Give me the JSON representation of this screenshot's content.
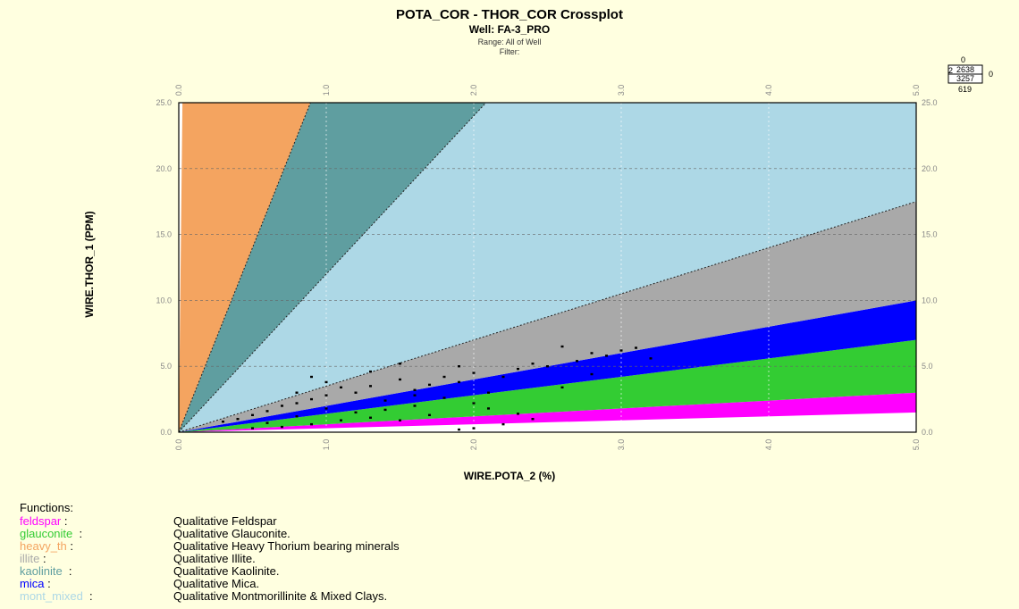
{
  "title": "POTA_COR - THOR_COR Crossplot",
  "well": "Well: FA-3_PRO",
  "range": "Range: All of Well",
  "filter": "Filter:",
  "counts": {
    "top": "0",
    "left": "2",
    "right": "0",
    "cell_top": "2638",
    "cell_bottom": "3257",
    "bottom": "619"
  },
  "colors": {
    "background": "#ffffe0",
    "feldspar": "#ff00ff",
    "glauconite": "#33cc33",
    "heavy_th": "#f4a460",
    "illite": "#a9a9a9",
    "kaolinite": "#5f9ea0",
    "mica": "#0000ff",
    "mont_mixed": "#add8e6"
  },
  "chart_data": {
    "type": "scatter",
    "title": "POTA_COR - THOR_COR Crossplot",
    "xlabel": "WIRE.POTA_2 (%)",
    "ylabel": "WIRE.THOR_1 (PPM)",
    "xlim": [
      0,
      5
    ],
    "ylim": [
      0,
      25
    ],
    "x_ticks": [
      "0.0",
      "1.0",
      "2.0",
      "3.0",
      "4.0",
      "5.0"
    ],
    "y_ticks": [
      "0.0",
      "5.0",
      "10.0",
      "15.0",
      "20.0",
      "25.0"
    ],
    "grid": true,
    "zone_boundaries_thor_per_pota": [
      {
        "zone": "feldspar",
        "lower": 0.3,
        "upper": 0.6
      },
      {
        "zone": "glauconite",
        "lower": 0.6,
        "upper": 1.4
      },
      {
        "zone": "mica",
        "lower": 1.4,
        "upper": 2.0
      },
      {
        "zone": "illite",
        "lower": 2.0,
        "upper": 3.5
      },
      {
        "zone": "mont_mixed",
        "lower": 3.5,
        "upper": 12.0
      },
      {
        "zone": "kaolinite",
        "lower": 12.0,
        "upper": 28.0
      },
      {
        "zone": "heavy_th",
        "lower": 28.0,
        "upper": 1000
      }
    ],
    "points": [
      [
        2.6,
        6.5
      ],
      [
        2.8,
        6.0
      ],
      [
        3.0,
        6.2
      ],
      [
        3.1,
        6.4
      ],
      [
        2.9,
        5.8
      ],
      [
        2.5,
        5.0
      ],
      [
        2.7,
        5.4
      ],
      [
        2.3,
        4.8
      ],
      [
        2.4,
        5.2
      ],
      [
        2.2,
        4.2
      ],
      [
        2.0,
        4.5
      ],
      [
        1.9,
        3.8
      ],
      [
        1.8,
        4.2
      ],
      [
        1.7,
        3.6
      ],
      [
        1.6,
        3.2
      ],
      [
        1.5,
        4.0
      ],
      [
        1.3,
        3.5
      ],
      [
        1.2,
        3.0
      ],
      [
        1.1,
        3.4
      ],
      [
        1.0,
        2.8
      ],
      [
        0.9,
        2.5
      ],
      [
        0.8,
        2.2
      ],
      [
        0.7,
        2.0
      ],
      [
        0.6,
        1.6
      ],
      [
        0.5,
        1.3
      ],
      [
        0.4,
        1.0
      ],
      [
        0.3,
        0.8
      ],
      [
        1.4,
        2.4
      ],
      [
        1.6,
        2.0
      ],
      [
        1.8,
        2.6
      ],
      [
        2.0,
        2.2
      ],
      [
        2.1,
        1.8
      ],
      [
        2.3,
        1.4
      ],
      [
        2.4,
        1.0
      ],
      [
        2.2,
        0.6
      ],
      [
        2.0,
        0.3
      ],
      [
        1.9,
        0.2
      ],
      [
        1.5,
        0.9
      ],
      [
        1.2,
        1.5
      ],
      [
        1.0,
        1.8
      ],
      [
        0.8,
        1.2
      ],
      [
        0.6,
        0.7
      ],
      [
        0.9,
        0.6
      ],
      [
        1.1,
        0.9
      ],
      [
        1.3,
        1.1
      ],
      [
        0.7,
        0.4
      ],
      [
        0.5,
        0.3
      ],
      [
        1.7,
        1.3
      ],
      [
        1.4,
        1.7
      ],
      [
        2.6,
        3.4
      ],
      [
        2.8,
        4.4
      ],
      [
        3.2,
        5.6
      ],
      [
        1.0,
        3.8
      ],
      [
        0.8,
        3.0
      ],
      [
        1.3,
        4.6
      ],
      [
        1.9,
        5.0
      ],
      [
        1.5,
        5.2
      ],
      [
        0.9,
        4.2
      ],
      [
        2.1,
        3.0
      ],
      [
        1.6,
        2.8
      ]
    ]
  },
  "legend": {
    "header": "Functions:",
    "items": [
      {
        "name": "feldspar",
        "sep": " :",
        "desc": "Qualitative Feldspar",
        "color": "#ff00ff"
      },
      {
        "name": "glauconite",
        "sep": "  :",
        "desc": "Qualitative Glauconite.",
        "color": "#33cc33"
      },
      {
        "name": "heavy_th",
        "sep": " :",
        "desc": "Qualitative Heavy Thorium bearing minerals",
        "color": "#f4a460"
      },
      {
        "name": "illite",
        "sep": " :",
        "desc": "Qualitative Illite.",
        "color": "#a9a9a9"
      },
      {
        "name": "kaolinite",
        "sep": "  :",
        "desc": "Qualitative Kaolinite.",
        "color": "#5f9ea0"
      },
      {
        "name": "mica",
        "sep": " :",
        "desc": "Qualitative Mica.",
        "color": "#0000ff"
      },
      {
        "name": "mont_mixed",
        "sep": "  :",
        "desc": "Qualitative Montmorillinite & Mixed Clays.",
        "color": "#add8e6"
      }
    ]
  }
}
